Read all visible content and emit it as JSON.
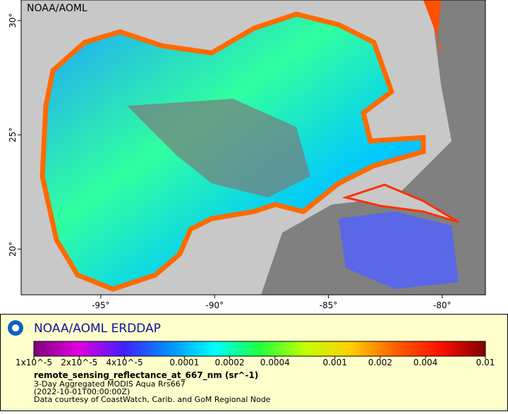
{
  "map": {
    "corner_label": "NOAA/AOML",
    "xlim": [
      -98.5,
      -78.1
    ],
    "ylim": [
      18,
      30.9
    ],
    "xticks": [
      {
        "value": -95,
        "label": "-95°"
      },
      {
        "value": -90,
        "label": "-90°"
      },
      {
        "value": -85,
        "label": "-85°"
      },
      {
        "value": -80,
        "label": "-80°"
      }
    ],
    "yticks": [
      {
        "value": 20,
        "label": "20°"
      },
      {
        "value": 25,
        "label": "25°"
      },
      {
        "value": 30,
        "label": "30°"
      }
    ]
  },
  "legend": {
    "title": "NOAA/AOML ERDDAP",
    "colorbar": {
      "scale": "log",
      "lim": [
        1e-05,
        0.01
      ],
      "ticks": [
        {
          "value": 1e-05,
          "label": "1x10^-5"
        },
        {
          "value": 2e-05,
          "label": "2x10^-5"
        },
        {
          "value": 4e-05,
          "label": "4x10^-5"
        },
        0.0001,
        0.0002,
        0.0004,
        0.001,
        0.002,
        0.004,
        0.01
      ],
      "colormap": [
        "#7f007f",
        "#e000e0",
        "#4020ff",
        "#0090ff",
        "#00ffff",
        "#20ff40",
        "#c0ff00",
        "#ffd000",
        "#ff6000",
        "#ff1000",
        "#800000"
      ]
    },
    "variable": "remote_sensing_reflectance_at_667_nm (sr^-1)",
    "lines": [
      "3-Day Aggregated MODIS Aqua Rrs667",
      "(2022-10-01T00:00:00Z)",
      "Data courtesy of CoastWatch, Carib. and GoM Regional Node"
    ]
  }
}
